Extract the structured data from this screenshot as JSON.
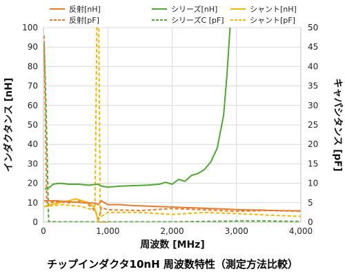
{
  "chart_data": {
    "type": "line",
    "title": "チップインダクタ10nH 周波数特性（測定方法比較）",
    "xlabel": "周波数 [MHz]",
    "ylabel_left": "インダクタンス [nH]",
    "ylabel_right": "キャパシタンス [pF]",
    "xlim": [
      0,
      4000
    ],
    "ylim_left": [
      0,
      100
    ],
    "ylim_right": [
      0,
      50
    ],
    "x_ticks": [
      "0",
      "1,000",
      "2,000",
      "3,000",
      "4,000"
    ],
    "y_left_ticks": [
      "0",
      "10",
      "20",
      "30",
      "40",
      "50",
      "60",
      "70",
      "80",
      "90",
      "100"
    ],
    "y_right_ticks": [
      "0",
      "5",
      "10",
      "15",
      "20",
      "25",
      "30",
      "35",
      "40",
      "45",
      "50"
    ],
    "grid": true,
    "legend_position": "top",
    "series": [
      {
        "name": "反射[nH]",
        "axis": "left",
        "color": "#E87A2C",
        "dash": false,
        "x": [
          10,
          200,
          400,
          600,
          800,
          850,
          900,
          1000,
          1200,
          1400,
          1600,
          1800,
          2000,
          2200,
          2400,
          2600,
          2800,
          3000,
          3200,
          3400,
          3600,
          3800,
          4000
        ],
        "y": [
          11,
          11,
          10.5,
          10,
          9.8,
          9,
          11,
          9,
          9,
          8.5,
          8.3,
          8,
          7.8,
          7.5,
          7.3,
          7,
          6.8,
          6.5,
          6.3,
          6.2,
          6,
          5.9,
          5.8
        ]
      },
      {
        "name": "反射[pF]",
        "axis": "right",
        "color": "#E87A2C",
        "dash": true,
        "x": [
          10,
          50,
          200,
          400,
          600,
          700,
          800,
          860,
          900,
          1000,
          1500,
          2000,
          2500,
          3000,
          3500,
          4000
        ],
        "y": [
          48,
          5,
          5.2,
          5,
          5.5,
          4.5,
          3,
          0.8,
          3.8,
          3.2,
          3,
          3.5,
          3.2,
          2.8,
          3,
          2.8
        ]
      },
      {
        "name": "シリーズ[nH]",
        "axis": "left",
        "color": "#4EA72E",
        "dash": false,
        "x": [
          20,
          100,
          150,
          250,
          400,
          550,
          700,
          850,
          900,
          1000,
          1200,
          1400,
          1600,
          1800,
          1900,
          2000,
          2100,
          2200,
          2300,
          2400,
          2500,
          2600,
          2700,
          2800,
          2850,
          2900
        ],
        "y": [
          17,
          18,
          19.5,
          20,
          19.5,
          19.5,
          19,
          19.5,
          18.5,
          18,
          18.5,
          18.8,
          19,
          19.5,
          20.5,
          19.5,
          22,
          21,
          24,
          25,
          27,
          31,
          38,
          55,
          75,
          100
        ]
      },
      {
        "name": "シリーズC [pF]",
        "axis": "right",
        "color": "#4EA72E",
        "dash": true,
        "x": [
          10,
          40,
          80,
          200,
          500,
          1000,
          1500,
          2000,
          2500,
          3000,
          3500,
          4000
        ],
        "y": [
          46,
          30,
          0.2,
          0.1,
          0.1,
          0.1,
          0.1,
          0.1,
          0.2,
          0.3,
          0.3,
          0.2
        ]
      },
      {
        "name": "シャント[nH]",
        "axis": "left",
        "color": "#F2B800",
        "dash": false,
        "x": [
          10,
          100,
          200,
          300,
          400,
          500,
          600,
          700,
          780,
          820,
          850,
          870,
          900,
          1000
        ],
        "y": [
          8,
          9,
          9.5,
          10.5,
          11,
          12,
          11,
          10,
          8,
          5,
          0,
          0,
          0,
          0
        ]
      },
      {
        "name": "シャント[pF]",
        "axis": "right",
        "color": "#F2B800",
        "dash": true,
        "x": [
          10,
          300,
          600,
          800,
          830,
          840,
          860,
          880,
          900,
          1000,
          1500,
          2000,
          2500,
          3000,
          3500,
          4000
        ],
        "y": [
          4,
          4.5,
          4,
          3,
          50,
          50,
          50,
          3,
          1.5,
          2.5,
          2.5,
          2,
          2.5,
          2.2,
          1.8,
          1.5
        ]
      }
    ]
  }
}
